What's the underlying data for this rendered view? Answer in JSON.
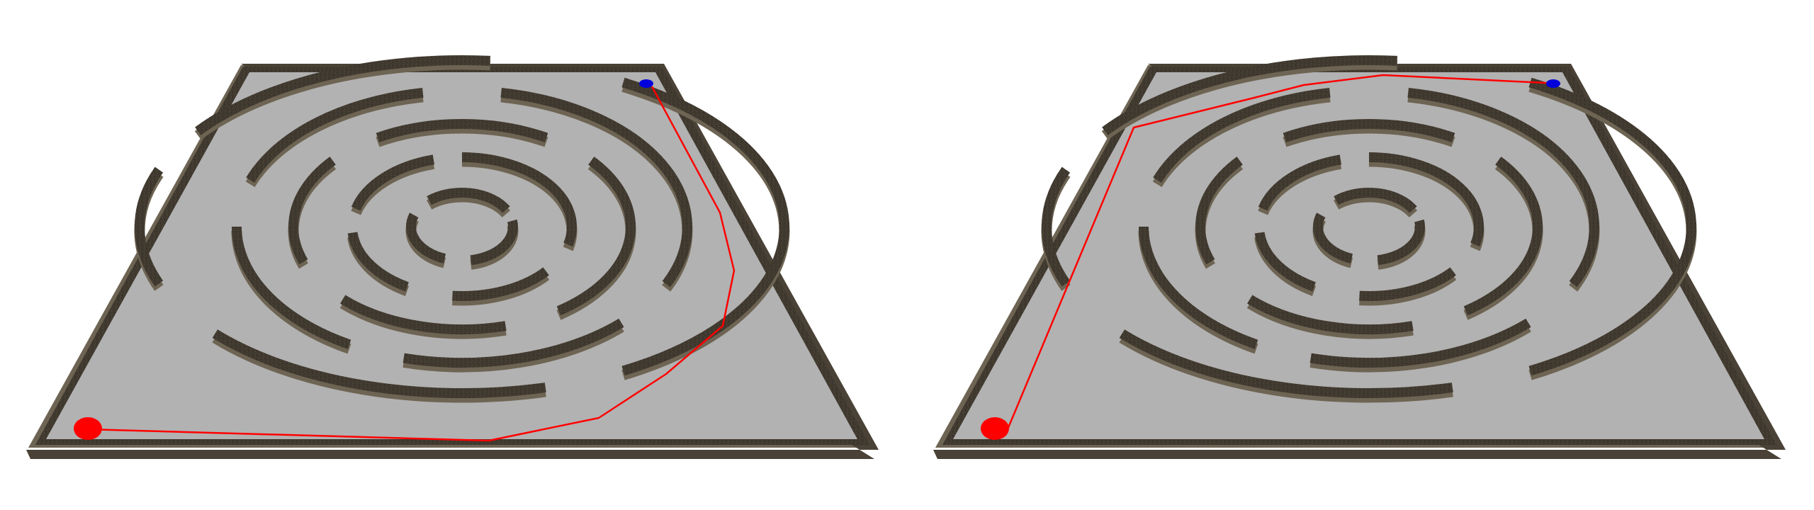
{
  "colors": {
    "background": "#ffffff",
    "floor": "#b2b2b2",
    "wall_top": "#3f382e",
    "wall_side": "#6e6453",
    "path": "#ff0000",
    "start_marker": "#ff0000",
    "goal_marker": "#0000dd"
  },
  "mazes": [
    {
      "name": "maze-left",
      "path_label": "route-via-right-side"
    },
    {
      "name": "maze-right",
      "path_label": "route-via-left-side"
    }
  ]
}
